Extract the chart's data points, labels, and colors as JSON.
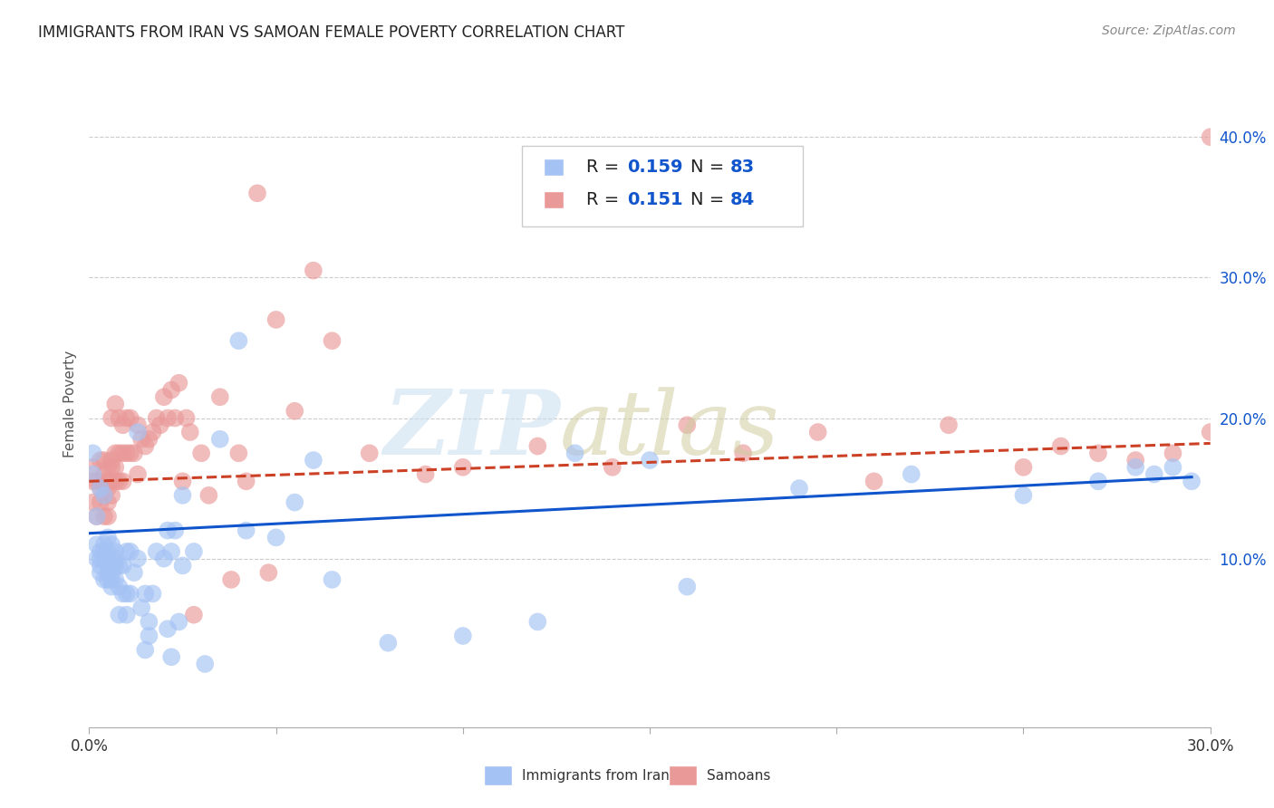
{
  "title": "IMMIGRANTS FROM IRAN VS SAMOAN FEMALE POVERTY CORRELATION CHART",
  "source": "Source: ZipAtlas.com",
  "ylabel": "Female Poverty",
  "right_yticks": [
    "10.0%",
    "20.0%",
    "30.0%",
    "40.0%"
  ],
  "right_ytick_vals": [
    0.1,
    0.2,
    0.3,
    0.4
  ],
  "xlim": [
    0.0,
    0.3
  ],
  "ylim": [
    -0.02,
    0.44
  ],
  "legend_label1": "Immigrants from Iran",
  "legend_label2": "Samoans",
  "blue_color": "#a4c2f4",
  "pink_color": "#ea9999",
  "blue_line_color": "#1155cc",
  "pink_line_color": "#cc4125",
  "axis_color": "#1155cc",
  "blue_scatter_x": [
    0.001,
    0.001,
    0.002,
    0.002,
    0.002,
    0.003,
    0.003,
    0.003,
    0.003,
    0.003,
    0.004,
    0.004,
    0.004,
    0.004,
    0.004,
    0.005,
    0.005,
    0.005,
    0.005,
    0.005,
    0.005,
    0.006,
    0.006,
    0.006,
    0.006,
    0.006,
    0.006,
    0.007,
    0.007,
    0.007,
    0.007,
    0.008,
    0.008,
    0.008,
    0.009,
    0.009,
    0.01,
    0.01,
    0.01,
    0.011,
    0.011,
    0.012,
    0.013,
    0.013,
    0.014,
    0.015,
    0.015,
    0.016,
    0.016,
    0.017,
    0.018,
    0.02,
    0.021,
    0.021,
    0.022,
    0.022,
    0.023,
    0.024,
    0.025,
    0.025,
    0.028,
    0.031,
    0.035,
    0.04,
    0.042,
    0.05,
    0.055,
    0.06,
    0.065,
    0.08,
    0.1,
    0.12,
    0.13,
    0.15,
    0.16,
    0.19,
    0.22,
    0.25,
    0.27,
    0.28,
    0.285,
    0.29,
    0.295
  ],
  "blue_scatter_y": [
    0.16,
    0.175,
    0.1,
    0.11,
    0.13,
    0.09,
    0.095,
    0.1,
    0.105,
    0.15,
    0.085,
    0.1,
    0.105,
    0.11,
    0.145,
    0.085,
    0.09,
    0.095,
    0.1,
    0.105,
    0.115,
    0.08,
    0.085,
    0.09,
    0.095,
    0.1,
    0.11,
    0.085,
    0.095,
    0.1,
    0.105,
    0.06,
    0.08,
    0.095,
    0.075,
    0.095,
    0.06,
    0.075,
    0.105,
    0.075,
    0.105,
    0.09,
    0.1,
    0.19,
    0.065,
    0.075,
    0.035,
    0.055,
    0.045,
    0.075,
    0.105,
    0.1,
    0.05,
    0.12,
    0.105,
    0.03,
    0.12,
    0.055,
    0.095,
    0.145,
    0.105,
    0.025,
    0.185,
    0.255,
    0.12,
    0.115,
    0.14,
    0.17,
    0.085,
    0.04,
    0.045,
    0.055,
    0.175,
    0.17,
    0.08,
    0.15,
    0.16,
    0.145,
    0.155,
    0.165,
    0.16,
    0.165,
    0.155
  ],
  "pink_scatter_x": [
    0.001,
    0.001,
    0.001,
    0.002,
    0.002,
    0.003,
    0.003,
    0.003,
    0.003,
    0.004,
    0.004,
    0.004,
    0.004,
    0.005,
    0.005,
    0.005,
    0.005,
    0.005,
    0.006,
    0.006,
    0.006,
    0.006,
    0.006,
    0.007,
    0.007,
    0.007,
    0.007,
    0.008,
    0.008,
    0.008,
    0.009,
    0.009,
    0.009,
    0.01,
    0.01,
    0.011,
    0.011,
    0.012,
    0.013,
    0.013,
    0.014,
    0.015,
    0.016,
    0.017,
    0.018,
    0.019,
    0.02,
    0.021,
    0.022,
    0.023,
    0.024,
    0.025,
    0.026,
    0.027,
    0.028,
    0.03,
    0.032,
    0.035,
    0.038,
    0.04,
    0.042,
    0.045,
    0.048,
    0.05,
    0.055,
    0.06,
    0.065,
    0.075,
    0.09,
    0.1,
    0.12,
    0.14,
    0.16,
    0.175,
    0.195,
    0.21,
    0.23,
    0.25,
    0.26,
    0.27,
    0.28,
    0.29,
    0.3,
    0.3
  ],
  "pink_scatter_y": [
    0.14,
    0.155,
    0.165,
    0.13,
    0.155,
    0.14,
    0.15,
    0.155,
    0.17,
    0.13,
    0.145,
    0.16,
    0.17,
    0.13,
    0.14,
    0.15,
    0.155,
    0.165,
    0.145,
    0.155,
    0.165,
    0.17,
    0.2,
    0.155,
    0.165,
    0.175,
    0.21,
    0.155,
    0.175,
    0.2,
    0.155,
    0.175,
    0.195,
    0.175,
    0.2,
    0.175,
    0.2,
    0.175,
    0.16,
    0.195,
    0.185,
    0.18,
    0.185,
    0.19,
    0.2,
    0.195,
    0.215,
    0.2,
    0.22,
    0.2,
    0.225,
    0.155,
    0.2,
    0.19,
    0.06,
    0.175,
    0.145,
    0.215,
    0.085,
    0.175,
    0.155,
    0.36,
    0.09,
    0.27,
    0.205,
    0.305,
    0.255,
    0.175,
    0.16,
    0.165,
    0.18,
    0.165,
    0.195,
    0.175,
    0.19,
    0.155,
    0.195,
    0.165,
    0.18,
    0.175,
    0.17,
    0.175,
    0.19,
    0.4
  ],
  "blue_trend_x": [
    0.0,
    0.295
  ],
  "blue_trend_y": [
    0.118,
    0.158
  ],
  "pink_trend_x": [
    0.0,
    0.3
  ],
  "pink_trend_y": [
    0.155,
    0.182
  ]
}
